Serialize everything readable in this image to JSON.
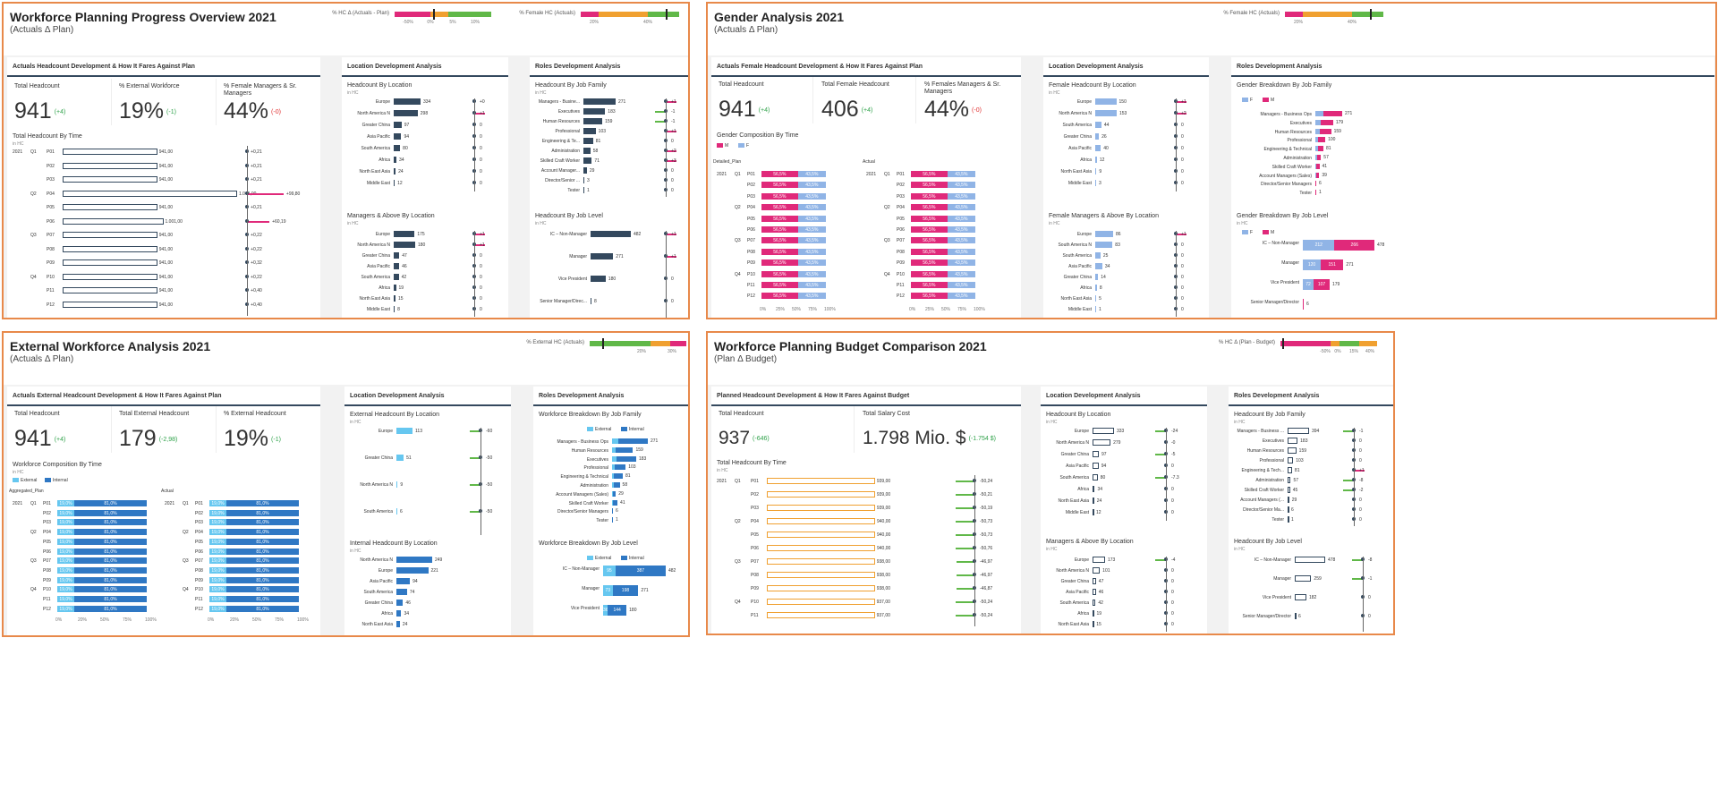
{
  "common": {
    "axis_hint": "in HC"
  },
  "dashboards": {
    "wpo": {
      "title": "Workforce Planning Progress Overview 2021",
      "subtitle": "(Actuals Δ Plan)",
      "kpi1": {
        "label": "% HC Δ (Actuals - Plan)",
        "ticks": [
          "-50%",
          "0%",
          "5%",
          "10%"
        ]
      },
      "kpi2": {
        "label": "% Female HC (Actuals)",
        "ticks": [
          "20%",
          "40%"
        ]
      },
      "main_panel": "Actuals Headcount Development & How It Fares Against Plan",
      "cards": [
        {
          "label": "Total Headcount",
          "value": "941",
          "delta": "(+4)"
        },
        {
          "label": "% External Workforce",
          "value": "19%",
          "delta": "(-1)"
        },
        {
          "label": "% Female Managers & Sr. Managers",
          "value": "44%",
          "delta": "(-0)"
        }
      ],
      "time_title": "Total Headcount By Time",
      "years": [
        "2021"
      ],
      "quarters": [
        "Q1",
        "Q2",
        "Q3",
        "Q4"
      ],
      "periods": [
        "P01",
        "P02",
        "P03",
        "P04",
        "P05",
        "P06",
        "P07",
        "P08",
        "P09",
        "P10",
        "P11",
        "P12"
      ],
      "time_values": [
        "941,00",
        "941,00",
        "941,00",
        "1.041,00",
        "941,00",
        "1.001,00",
        "941,00",
        "941,00",
        "941,00",
        "941,00",
        "941,00",
        "941,00"
      ],
      "time_var": [
        "+0,21",
        "+0,21",
        "+0,21",
        "+99,80",
        "+0,21",
        "+60,19",
        "+0,22",
        "+0,22",
        "+0,32",
        "+0,22",
        "+0,40",
        "+0,40"
      ],
      "loc_panel": "Location Development Analysis",
      "hc_loc_title": "Headcount By Location",
      "hc_loc": [
        [
          "Europe",
          "334",
          "+0"
        ],
        [
          "North America N",
          "298",
          "+1"
        ],
        [
          "Greater China",
          "97",
          "0"
        ],
        [
          "Asia Pacific",
          "94",
          "0"
        ],
        [
          "South America",
          "80",
          "0"
        ],
        [
          "Africa",
          "34",
          "0"
        ],
        [
          "North East Asia",
          "24",
          "0"
        ],
        [
          "Middle East",
          "12",
          "0"
        ]
      ],
      "mgr_loc_title": "Managers & Above By Location",
      "mgr_loc": [
        [
          "Europe",
          "175",
          "+1"
        ],
        [
          "North America N",
          "180",
          "+1"
        ],
        [
          "Greater China",
          "47",
          "0"
        ],
        [
          "Asia Pacific",
          "46",
          "0"
        ],
        [
          "South America",
          "42",
          "0"
        ],
        [
          "Africa",
          "19",
          "0"
        ],
        [
          "North East Asia",
          "15",
          "0"
        ],
        [
          "Middle East",
          "8",
          "0"
        ]
      ],
      "roles_panel": "Roles Development Analysis",
      "job_fam_title": "Headcount By Job Family",
      "job_fam": [
        [
          "Managers - Busine...",
          "271",
          "+1"
        ],
        [
          "Executives",
          "183",
          "-1"
        ],
        [
          "Human Resources",
          "159",
          "-1"
        ],
        [
          "Professional",
          "103",
          "+1"
        ],
        [
          "Engineering & Te...",
          "81",
          "0"
        ],
        [
          "Administration",
          "58",
          "+2"
        ],
        [
          "Skilled Craft Worker",
          "71",
          "+3"
        ],
        [
          "Account Manager...",
          "29",
          "0"
        ],
        [
          "Director/Senior ...",
          "3",
          "0"
        ],
        [
          "Tester",
          "1",
          "0"
        ]
      ],
      "job_lvl_title": "Headcount By Job Level",
      "job_lvl": [
        [
          "IC – Non-Manager",
          "482",
          "+1"
        ],
        [
          "Manager",
          "271",
          "+1"
        ],
        [
          "Vice President",
          "180",
          "0"
        ],
        [
          "Senior Manager/Direc...",
          "8",
          "0"
        ]
      ]
    },
    "ga": {
      "title": "Gender Analysis 2021",
      "subtitle": "(Actuals Δ Plan)",
      "kpi1": {
        "label": "% Female HC (Actuals)",
        "ticks": [
          "20%",
          "40%"
        ]
      },
      "main_panel": "Actuals Female Headcount Development & How It Fares Against Plan",
      "cards": [
        {
          "label": "Total Headcount",
          "value": "941",
          "delta": "(+4)"
        },
        {
          "label": "Total Female Headcount",
          "value": "406",
          "delta": "(+4)"
        },
        {
          "label": "% Females Managers & Sr. Managers",
          "value": "44%",
          "delta": "(-0)"
        }
      ],
      "comp_title": "Gender Composition By Time",
      "legend": [
        "M",
        "F"
      ],
      "col_titles": [
        "Detailed_Plan",
        "Actual"
      ],
      "years": [
        "2021"
      ],
      "quarters": [
        "Q1",
        "Q2",
        "Q3",
        "Q4"
      ],
      "periods": [
        "P01",
        "P02",
        "P03",
        "P04",
        "P05",
        "P06",
        "P07",
        "P08",
        "P09",
        "P10",
        "P11",
        "P12"
      ],
      "plan_m": [
        "56,5%",
        "56,5%",
        "56,5%",
        "56,5%",
        "56,5%",
        "56,5%",
        "56,5%",
        "56,5%",
        "56,5%",
        "56,5%",
        "56,5%",
        "56,5%"
      ],
      "plan_f": [
        "43,5%",
        "43,5%",
        "43,5%",
        "43,5%",
        "43,5%",
        "43,5%",
        "43,5%",
        "43,5%",
        "43,5%",
        "43,5%",
        "43,5%",
        "43,5%"
      ],
      "act_m": [
        "56,5%",
        "56,5%",
        "56,5%",
        "56,5%",
        "56,5%",
        "56,5%",
        "56,5%",
        "56,5%",
        "56,5%",
        "56,5%",
        "56,5%",
        "56,5%"
      ],
      "act_f": [
        "43,5%",
        "43,5%",
        "43,5%",
        "43,5%",
        "43,5%",
        "43,5%",
        "43,5%",
        "43,5%",
        "43,5%",
        "43,5%",
        "43,5%",
        "43,5%"
      ],
      "pct_ticks": [
        "0%",
        "25%",
        "50%",
        "75%",
        "100%"
      ],
      "loc_panel": "Location Development Analysis",
      "fem_loc_title": "Female Headcount By Location",
      "fem_loc": [
        [
          "Europe",
          "150",
          "+1"
        ],
        [
          "North America N",
          "153",
          "+2"
        ],
        [
          "South America",
          "44",
          "0"
        ],
        [
          "Greater China",
          "26",
          "0"
        ],
        [
          "Asia Pacific",
          "40",
          "0"
        ],
        [
          "Africa",
          "12",
          "0"
        ],
        [
          "North East Asia",
          "9",
          "0"
        ],
        [
          "Middle East",
          "3",
          "0"
        ]
      ],
      "fem_mgr_title": "Female Managers & Above By Location",
      "fem_mgr": [
        [
          "Europe",
          "86",
          "+1"
        ],
        [
          "South America N",
          "83",
          "0"
        ],
        [
          "South America",
          "25",
          "0"
        ],
        [
          "Asia Pacific",
          "34",
          "0"
        ],
        [
          "Greater China",
          "14",
          "0"
        ],
        [
          "Africa",
          "8",
          "0"
        ],
        [
          "North East Asia",
          "5",
          "0"
        ],
        [
          "Middle East",
          "1",
          "0"
        ]
      ],
      "roles_panel": "Roles Development Analysis",
      "gjf_title": "Gender Breakdown By Job Family",
      "gjf_legend": [
        "F",
        "M"
      ],
      "gjf": [
        [
          "Managers - Business Ops",
          "271"
        ],
        [
          "Executives",
          "179"
        ],
        [
          "Human Resources",
          "159"
        ],
        [
          "Professional",
          "100"
        ],
        [
          "Engineering & Technical",
          "81"
        ],
        [
          "Administration",
          "57"
        ],
        [
          "Skilled Craft Worker",
          "41"
        ],
        [
          "Account Managers (Sales)",
          "39"
        ],
        [
          "Director/Senior Managers",
          "6"
        ],
        [
          "Tester",
          "1"
        ]
      ],
      "gjl_title": "Gender Breakdown By Job Level",
      "gjl": [
        [
          "IC – Non-Manager",
          "212",
          "266",
          "478"
        ],
        [
          "Manager",
          "120",
          "151",
          "271"
        ],
        [
          "Vice President",
          "72",
          "107",
          "179"
        ],
        [
          "Senior Manager/Director",
          "",
          "",
          "6"
        ]
      ]
    },
    "ewa": {
      "title": "External Workforce Analysis 2021",
      "subtitle": "(Actuals Δ Plan)",
      "kpi1": {
        "label": "% External HC (Actuals)",
        "ticks": [
          "20%",
          "30%"
        ]
      },
      "main_panel": "Actuals External Headcount Development & How It Fares Against Plan",
      "cards": [
        {
          "label": "Total Headcount",
          "value": "941",
          "delta": "(+4)"
        },
        {
          "label": "Total External Headcount",
          "value": "179",
          "delta": "(-2,98)"
        },
        {
          "label": "% External Headcount",
          "value": "19%",
          "delta": "(-1)"
        }
      ],
      "comp_title": "Workforce Composition By Time",
      "legend": [
        "External",
        "Internal"
      ],
      "col_titles": [
        "Aggregated_Plan",
        "Actual"
      ],
      "years": [
        "2021"
      ],
      "quarters": [
        "Q1",
        "Q2",
        "Q3",
        "Q4"
      ],
      "periods": [
        "P01",
        "P02",
        "P03",
        "P04",
        "P05",
        "P06",
        "P07",
        "P08",
        "P09",
        "P10",
        "P11",
        "P12"
      ],
      "ext_pct": [
        "19,0%",
        "19,0%",
        "19,0%",
        "19,0%",
        "19,0%",
        "19,0%",
        "19,0%",
        "19,0%",
        "19,0%",
        "19,0%",
        "19,0%",
        "19,0%"
      ],
      "int_pct": [
        "81,0%",
        "81,0%",
        "81,0%",
        "81,0%",
        "81,0%",
        "81,0%",
        "81,0%",
        "81,0%",
        "81,0%",
        "81,0%",
        "81,0%",
        "81,0%"
      ],
      "pct_ticks": [
        "0%",
        "20%",
        "50%",
        "75%",
        "100%"
      ],
      "loc_panel": "Location Development Analysis",
      "ext_loc_title": "External Headcount By Location",
      "ext_loc": [
        [
          "Europe",
          "113",
          "-60"
        ],
        [
          "Greater China",
          "51",
          "-50"
        ],
        [
          "North America N",
          "9",
          "-50"
        ],
        [
          "South America",
          "6",
          "-50"
        ]
      ],
      "int_loc_title": "Internal Headcount By Location",
      "int_loc": [
        [
          "North America N",
          "249",
          ""
        ],
        [
          "Europe",
          "221",
          ""
        ],
        [
          "Asia Pacific",
          "94",
          ""
        ],
        [
          "South America",
          "74",
          ""
        ],
        [
          "Greater China",
          "46",
          ""
        ],
        [
          "Africa",
          "34",
          ""
        ],
        [
          "North East Asia",
          "24",
          ""
        ]
      ],
      "roles_panel": "Roles Development Analysis",
      "wjf_title": "Workforce Breakdown By Job Family",
      "wjf": [
        [
          "Managers - Business Ops",
          "271"
        ],
        [
          "Human Resources",
          "159"
        ],
        [
          "Executives",
          "183"
        ],
        [
          "Professional",
          "103"
        ],
        [
          "Engineering & Technical",
          "81"
        ],
        [
          "Administration",
          "58"
        ],
        [
          "Account Managers (Sales)",
          "29"
        ],
        [
          "Skilled Craft Worker",
          "41"
        ],
        [
          "Director/Senior Managers",
          "6"
        ],
        [
          "Tester",
          "1"
        ]
      ],
      "wjl_title": "Workforce Breakdown By Job Level",
      "wjl": [
        [
          "IC – Non-Manager",
          "95",
          "387",
          "482"
        ],
        [
          "Manager",
          "73",
          "198",
          "271"
        ],
        [
          "Vice President",
          "36",
          "144",
          "180"
        ]
      ]
    },
    "wpb": {
      "title": "Workforce Planning Budget Comparison 2021",
      "subtitle": "(Plan Δ Budget)",
      "kpi1": {
        "label": "% HC Δ (Plan - Budget)",
        "ticks": [
          "-50%",
          "0%",
          "15%",
          "40%"
        ]
      },
      "main_panel": "Planned Headcount Development & How It Fares Against Budget",
      "cards": [
        {
          "label": "Total Headcount",
          "value": "937",
          "delta": "(-646)"
        },
        {
          "label": "Total Salary Cost",
          "value": "1.798 Mio. $",
          "delta": "(-1.754 $)"
        }
      ],
      "time_title": "Total Headcount By Time",
      "years": [
        "2021"
      ],
      "quarters": [
        "Q1",
        "Q2",
        "Q3",
        "Q4"
      ],
      "periods": [
        "P01",
        "P02",
        "P03",
        "P04",
        "P05",
        "P06",
        "P07",
        "P08",
        "P09",
        "P10",
        "P11"
      ],
      "time_values": [
        "939,00",
        "939,00",
        "939,00",
        "940,00",
        "940,00",
        "940,00",
        "938,00",
        "938,00",
        "938,00",
        "937,00",
        "937,00"
      ],
      "time_var": [
        "-50,24",
        "-50,21",
        "-50,19",
        "-50,73",
        "-50,73",
        "-50,76",
        "-46,97",
        "-46,97",
        "-46,87",
        "-50,24",
        "-50,24"
      ],
      "loc_panel": "Location Development Analysis",
      "hc_loc_title": "Headcount By Location",
      "hc_loc": [
        [
          "Europe",
          "333",
          "-24"
        ],
        [
          "North America N",
          "279",
          "-0"
        ],
        [
          "Greater China",
          "97",
          "-5"
        ],
        [
          "Asia Pacific",
          "94",
          "0"
        ],
        [
          "South America",
          "80",
          "-7.3"
        ],
        [
          "Africa",
          "34",
          "0"
        ],
        [
          "North East Asia",
          "24",
          "0"
        ],
        [
          "Middle East",
          "12",
          "0"
        ]
      ],
      "mgr_loc_title": "Managers & Above By Location",
      "mgr_loc": [
        [
          "Europe",
          "173",
          "-4"
        ],
        [
          "North America N",
          "101",
          "0"
        ],
        [
          "Greater China",
          "47",
          "0"
        ],
        [
          "Asia Pacific",
          "46",
          "0"
        ],
        [
          "South America",
          "42",
          "0"
        ],
        [
          "Africa",
          "19",
          "0"
        ],
        [
          "North East Asia",
          "15",
          "0"
        ]
      ],
      "roles_panel": "Roles Development Analysis",
      "job_fam_title": "Headcount By Job Family",
      "job_fam": [
        [
          "Managers - Business ...",
          "394",
          "-1"
        ],
        [
          "Executives",
          "183",
          "0"
        ],
        [
          "Human Resources",
          "159",
          "0"
        ],
        [
          "Professional",
          "103",
          "0"
        ],
        [
          "Engineering & Tech...",
          "81",
          "+1"
        ],
        [
          "Administration",
          "57",
          "-8"
        ],
        [
          "Skilled Craft Worker",
          "45",
          "-2"
        ],
        [
          "Account Managers (...",
          "29",
          "0"
        ],
        [
          "Director/Senior Ma...",
          "6",
          "0"
        ],
        [
          "Tester",
          "1",
          "0"
        ]
      ],
      "job_lvl_title": "Headcount By Job Level",
      "job_lvl": [
        [
          "IC – Non-Manager",
          "478",
          "-8"
        ],
        [
          "Manager",
          "259",
          "-1"
        ],
        [
          "Vice President",
          "182",
          "0"
        ],
        [
          "Senior Manager/Director",
          "6",
          "0"
        ]
      ]
    }
  }
}
